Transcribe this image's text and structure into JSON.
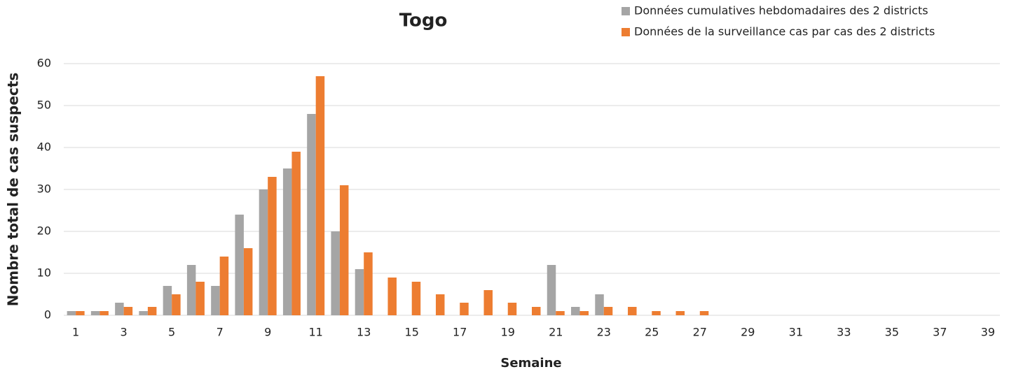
{
  "chart_data": {
    "type": "bar",
    "title": "Togo",
    "x_label": "Semaine",
    "y_label": "Nombre total de cas suspects",
    "categories": [
      "1",
      null,
      "3",
      null,
      "5",
      null,
      "7",
      null,
      "9",
      null,
      "11",
      null,
      "13",
      null,
      "15",
      null,
      "17",
      null,
      "19",
      null,
      "21",
      null,
      "23",
      null,
      "25",
      null,
      "27",
      null,
      "29",
      null,
      "31",
      null,
      "33",
      null,
      "35",
      null,
      "37",
      null,
      "39"
    ],
    "series": [
      {
        "name": "Données cumulatives hebdomadaires des 2 districts",
        "color": "#a5a5a5",
        "values": [
          1,
          1,
          3,
          1,
          7,
          12,
          7,
          24,
          30,
          35,
          48,
          20,
          11,
          0,
          0,
          0,
          0,
          0,
          0,
          0,
          12,
          2,
          5,
          0,
          0,
          0,
          0,
          0,
          0,
          0,
          0,
          0,
          0,
          0,
          0,
          0,
          0,
          0,
          0
        ]
      },
      {
        "name": "Données de la surveillance cas par cas des 2 districts",
        "color": "#ed7d31",
        "values": [
          1,
          1,
          2,
          2,
          5,
          8,
          14,
          16,
          33,
          39,
          57,
          31,
          15,
          9,
          8,
          5,
          3,
          6,
          3,
          2,
          1,
          1,
          2,
          2,
          1,
          1,
          1,
          0,
          0,
          0,
          0,
          0,
          0,
          0,
          0,
          0,
          0,
          0,
          0
        ]
      }
    ],
    "ylim": [
      0,
      60
    ],
    "yticks": [
      0,
      10,
      20,
      30,
      40,
      50,
      60
    ],
    "grid": true
  }
}
